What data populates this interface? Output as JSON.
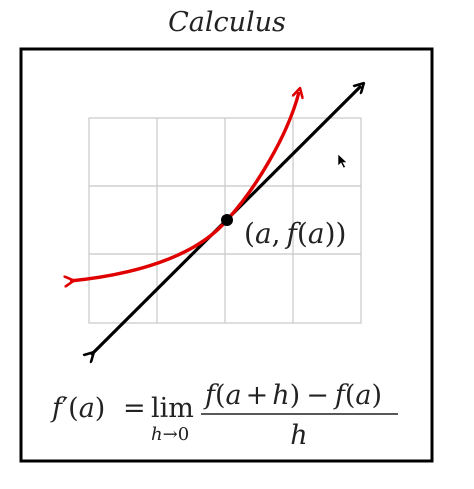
{
  "title": "Calculus",
  "point_label": {
    "open": "(",
    "a": "a",
    "comma": ",",
    "f": "f",
    "inner_open": "(",
    "a2": "a",
    "close": "))"
  },
  "formula": {
    "lhs_f": "f",
    "lhs_prime": "′",
    "lhs_open": "(",
    "lhs_a": "a",
    "lhs_close": ")",
    "equals": "=",
    "lim": "lim",
    "limit_var": "h",
    "limit_arrow": "→",
    "limit_to": "0",
    "num_f1": "f",
    "num_open1": "(",
    "num_a1": "a",
    "num_plus": "+",
    "num_h": "h",
    "num_close1": ")",
    "num_minus": "−",
    "num_f2": "f",
    "num_open2": "(",
    "num_a2": "a",
    "num_close2": ")",
    "denominator": "h"
  },
  "colors": {
    "curve": "#e00000",
    "tangent": "#000000",
    "grid": "#c8c8c8",
    "frame": "#000000",
    "text": "#222222"
  },
  "icons": {
    "cursor": "mouse-pointer-icon"
  }
}
